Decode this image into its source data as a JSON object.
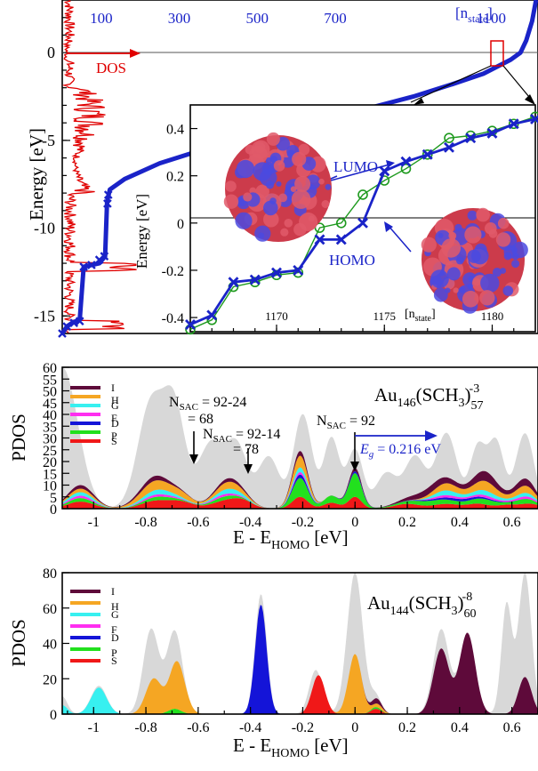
{
  "chart_data": [
    {
      "type": "scatter",
      "ylabel": "Energy [eV]",
      "yticks": [
        "0",
        "-5",
        "-10",
        "-15"
      ],
      "top_ticks": [
        "100",
        "300",
        "500",
        "700",
        "1100"
      ],
      "top_axis_label": "[n",
      "top_axis_sub": "state",
      "top_axis_close": "]",
      "dos_label": "DOS",
      "ylim": [
        -16,
        3
      ],
      "xlim": [
        0,
        1220
      ],
      "colors": {
        "dos": "#e00000",
        "states": "#1a23c8"
      },
      "states_curve": [
        [
          0,
          -16
        ],
        [
          12,
          -15.6
        ],
        [
          25,
          -15.4
        ],
        [
          45,
          -15.2
        ],
        [
          55,
          -12.2
        ],
        [
          95,
          -12.0
        ],
        [
          110,
          -11.6
        ],
        [
          115,
          -8.5
        ],
        [
          122,
          -7.8
        ],
        [
          160,
          -7.2
        ],
        [
          250,
          -6.3
        ],
        [
          350,
          -5.6
        ],
        [
          500,
          -4.8
        ],
        [
          650,
          -4.0
        ],
        [
          780,
          -3.2
        ],
        [
          900,
          -2.5
        ],
        [
          1000,
          -1.8
        ],
        [
          1080,
          -1.2
        ],
        [
          1150,
          -0.4
        ],
        [
          1175,
          0
        ],
        [
          1190,
          0.7
        ],
        [
          1205,
          1.8
        ],
        [
          1215,
          3
        ]
      ],
      "inset": {
        "ylabel": "Energy [eV]",
        "yticks": [
          "0.4",
          "0.2",
          "0",
          "-0.2",
          "-0.4"
        ],
        "xticks": [
          "1170",
          "1175",
          "1180"
        ],
        "xlabel": "[n",
        "xlabel_sub": "state",
        "xlabel_close": "]",
        "lumo_label": "LUMO",
        "homo_label": "HOMO",
        "xlim": [
          1166,
          1182
        ],
        "ylim": [
          -0.46,
          0.5
        ],
        "blue_series": [
          [
            1166,
            -0.43
          ],
          [
            1167,
            -0.39
          ],
          [
            1168,
            -0.25
          ],
          [
            1169,
            -0.24
          ],
          [
            1170,
            -0.21
          ],
          [
            1171,
            -0.2
          ],
          [
            1172,
            -0.07
          ],
          [
            1173,
            -0.07
          ],
          [
            1174,
            0
          ],
          [
            1175,
            0.22
          ],
          [
            1176,
            0.26
          ],
          [
            1177,
            0.29
          ],
          [
            1178,
            0.32
          ],
          [
            1179,
            0.36
          ],
          [
            1180,
            0.38
          ],
          [
            1181,
            0.42
          ],
          [
            1182,
            0.44
          ]
        ],
        "green_series": [
          [
            1166,
            -0.45
          ],
          [
            1167,
            -0.41
          ],
          [
            1168,
            -0.27
          ],
          [
            1169,
            -0.25
          ],
          [
            1170,
            -0.22
          ],
          [
            1171,
            -0.21
          ],
          [
            1172,
            -0.02
          ],
          [
            1173,
            0
          ],
          [
            1174,
            0.12
          ],
          [
            1175,
            0.18
          ],
          [
            1176,
            0.23
          ],
          [
            1177,
            0.29
          ],
          [
            1178,
            0.36
          ],
          [
            1179,
            0.37
          ],
          [
            1180,
            0.39
          ],
          [
            1181,
            0.42
          ],
          [
            1182,
            0.45
          ]
        ]
      }
    },
    {
      "type": "area",
      "ylabel": "PDOS",
      "xlabel": "E - E",
      "xlabel_sub": "HOMO",
      "xlabel_close": " [eV]",
      "formula_main": "Au",
      "formula_sub1": "146",
      "formula_mid": "(SCH",
      "formula_sub2": "3",
      "formula_close": ")",
      "formula_sub3": "57",
      "formula_sup": "-3",
      "xlim": [
        -1.12,
        0.7
      ],
      "ylim": [
        0,
        60
      ],
      "xticks": [
        "-1",
        "-0.8",
        "-0.6",
        "-0.4",
        "-0.2",
        "0",
        "0.2",
        "0.4",
        "0.6"
      ],
      "yticks": [
        "0",
        "5",
        "10",
        "15",
        "20",
        "25",
        "30",
        "35",
        "40",
        "45",
        "50",
        "55",
        "60"
      ],
      "legend": [
        "I",
        "H",
        "G",
        "F",
        "D",
        "P",
        "S"
      ],
      "annotations": {
        "nsac1_a": "N",
        "nsac1_sub": "SAC",
        "nsac1_b": " = 92-24",
        "nsac1_c": "= 68",
        "nsac2_a": "N",
        "nsac2_sub": "SAC",
        "nsac2_b": " = 92-14",
        "nsac2_c": "= 78",
        "nsac3_a": "N",
        "nsac3_sub": "SAC",
        "nsac3_b": " = 92",
        "eg_a": "E",
        "eg_sub": "g",
        "eg_b": " = 0.216 eV"
      }
    },
    {
      "type": "area",
      "ylabel": "PDOS",
      "xlabel": "E - E",
      "xlabel_sub": "HOMO",
      "xlabel_close": " [eV]",
      "formula_main": "Au",
      "formula_sub1": "144",
      "formula_mid": "(SCH",
      "formula_sub2": "3",
      "formula_close": ")",
      "formula_sub3": "60",
      "formula_sup": "-8",
      "xlim": [
        -1.12,
        0.7
      ],
      "ylim": [
        0,
        80
      ],
      "xticks": [
        "-1",
        "-0.8",
        "-0.6",
        "-0.4",
        "-0.2",
        "0",
        "0.2",
        "0.4",
        "0.6"
      ],
      "yticks": [
        "0",
        "20",
        "40",
        "60",
        "80"
      ],
      "legend": [
        "I",
        "H",
        "G",
        "F",
        "D",
        "P",
        "S"
      ]
    }
  ],
  "colors": {
    "I": "#5e0a3a",
    "H": "#f5a623",
    "G": "#37f0f0",
    "F": "#ff2ef0",
    "D": "#1414d8",
    "P": "#22e01e",
    "S": "#f01818",
    "total": "#d8d8d8",
    "arrow_blue": "#1a23c8"
  }
}
